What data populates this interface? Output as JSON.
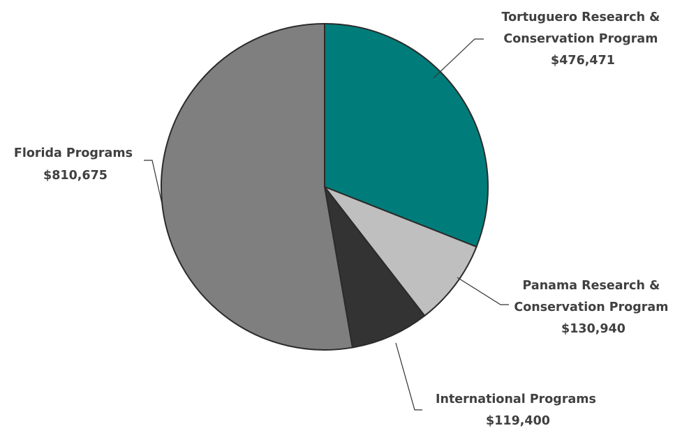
{
  "chart_data": {
    "type": "pie",
    "slices": [
      {
        "name": "Tortuguero Research & Conservation Program",
        "label_lines": [
          "Tortuguero Research &",
          "Conservation Program"
        ],
        "value": 476471,
        "value_label": "$476,471",
        "color": "#007d7b"
      },
      {
        "name": "Panama Research & Conservation Program",
        "label_lines": [
          "Panama Research &",
          "Conservation Program"
        ],
        "value": 130940,
        "value_label": "$130,940",
        "color": "#bfbfbf"
      },
      {
        "name": "International Programs",
        "label_lines": [
          "International Programs"
        ],
        "value": 119400,
        "value_label": "$119,400",
        "color": "#333333"
      },
      {
        "name": "Florida Programs",
        "label_lines": [
          "Florida Programs"
        ],
        "value": 810675,
        "value_label": "$810,675",
        "color": "#7f7f7f"
      }
    ],
    "start_angle": "12 o'clock",
    "direction": "clockwise",
    "legend": "none",
    "data_labels": "outside with leader lines"
  }
}
